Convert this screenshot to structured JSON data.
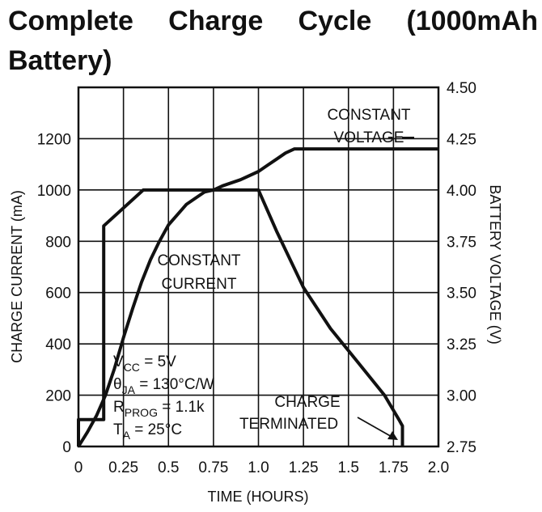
{
  "title": {
    "line1": [
      "Complete",
      "Charge",
      "Cycle",
      "(1000mAh"
    ],
    "line2": "Battery)"
  },
  "chart_data": {
    "type": "line",
    "title": "Complete Charge Cycle (1000mAh Battery)",
    "xlabel": "TIME (HOURS)",
    "ylabel_left": "CHARGE CURRENT (mA)",
    "ylabel_right": "BATTERY VOLTAGE (V)",
    "xlim": [
      0,
      2.0
    ],
    "ylim_left": [
      0,
      1400
    ],
    "ylim_right": [
      2.75,
      4.5
    ],
    "x_ticks": [
      "0",
      "0.25",
      "0.5",
      "0.75",
      "1.0",
      "1.25",
      "1.5",
      "1.75",
      "2.0"
    ],
    "y_ticks_left": [
      "0",
      "200",
      "400",
      "600",
      "800",
      "1000",
      "1200"
    ],
    "y_ticks_right": [
      "2.75",
      "3.00",
      "3.25",
      "3.50",
      "3.75",
      "4.00",
      "4.25",
      "4.50"
    ],
    "grid": true,
    "series": [
      {
        "axis": "left",
        "x": [
          0,
          0,
          0.14,
          0.14,
          0.36,
          1.0,
          1.1,
          1.25,
          1.4,
          1.55,
          1.7,
          1.78,
          1.8,
          1.8
        ],
        "values": [
          0,
          105,
          105,
          860,
          1000,
          1000,
          840,
          620,
          460,
          330,
          200,
          105,
          80,
          0
        ]
      },
      {
        "axis": "right",
        "x": [
          0,
          0.05,
          0.1,
          0.15,
          0.2,
          0.25,
          0.3,
          0.35,
          0.4,
          0.45,
          0.5,
          0.55,
          0.6,
          0.65,
          0.7,
          0.75,
          0.8,
          0.9,
          1.0,
          1.05,
          1.1,
          1.15,
          1.2,
          1.4,
          1.6,
          1.8,
          2.0
        ],
        "values": [
          2.75,
          2.82,
          2.9,
          3.0,
          3.13,
          3.28,
          3.42,
          3.55,
          3.66,
          3.75,
          3.83,
          3.88,
          3.93,
          3.96,
          3.99,
          4.0,
          4.02,
          4.05,
          4.09,
          4.12,
          4.15,
          4.18,
          4.2,
          4.2,
          4.2,
          4.2,
          4.2
        ]
      }
    ],
    "annotations": {
      "constant_voltage": [
        "CONSTANT",
        "VOLTAGE"
      ],
      "constant_current": [
        "CONSTANT",
        "CURRENT"
      ],
      "charge_terminated": [
        "CHARGE",
        "TERMINATED"
      ],
      "conditions": [
        {
          "main": "V",
          "sub": "CC",
          "rest": " = 5V"
        },
        {
          "main": "θ",
          "sub": "JA",
          "rest": " = 130°C/W"
        },
        {
          "main": "R",
          "sub": "PROG",
          "rest": " = 1.1k"
        },
        {
          "main": "T",
          "sub": "A",
          "rest": " = 25°C"
        }
      ]
    }
  }
}
